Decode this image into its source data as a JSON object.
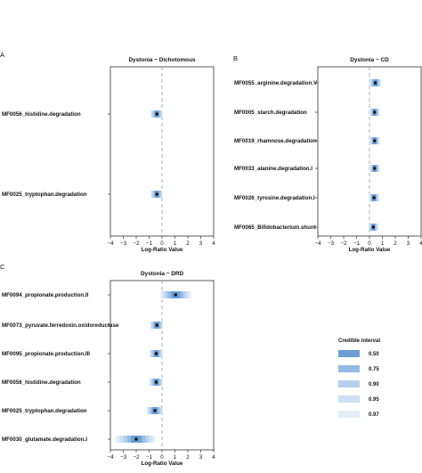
{
  "chart_data": [
    {
      "panel": "A",
      "type": "interval",
      "title": "Dystonia ~ Dichotomous",
      "xlabel": "Log-Ratio Value",
      "xlim": [
        -4,
        4
      ],
      "xticks": [
        "−4",
        "−3",
        "−2",
        "−1",
        "0",
        "1",
        "2",
        "3",
        "4"
      ],
      "reference_line": 0,
      "rows": [
        {
          "label": "MF0056_histidine.degradation",
          "median": -0.4,
          "ci": {
            "0.50": [
              -0.55,
              -0.25
            ],
            "0.75": [
              -0.65,
              -0.15
            ],
            "0.90": [
              -0.75,
              -0.05
            ],
            "0.95": [
              -0.82,
              0.0
            ],
            "0.97": [
              -0.88,
              0.05
            ]
          }
        },
        {
          "label": "MF0025_tryptophan.degradation",
          "median": -0.4,
          "ci": {
            "0.50": [
              -0.55,
              -0.25
            ],
            "0.75": [
              -0.65,
              -0.15
            ],
            "0.90": [
              -0.75,
              -0.05
            ],
            "0.95": [
              -0.82,
              0.0
            ],
            "0.97": [
              -0.88,
              0.05
            ]
          }
        }
      ]
    },
    {
      "panel": "B",
      "type": "interval",
      "title": "Dystonia ~ CD",
      "xlabel": "Log-Ratio Value",
      "xlim": [
        -4,
        4
      ],
      "xticks": [
        "−4",
        "−3",
        "−2",
        "−1",
        "0",
        "1",
        "2",
        "3",
        "4"
      ],
      "reference_line": 0,
      "rows": [
        {
          "label": "MF0055_arginine.degradation.V",
          "median": 0.45,
          "ci": {
            "0.50": [
              0.3,
              0.6
            ],
            "0.75": [
              0.2,
              0.7
            ],
            "0.90": [
              0.12,
              0.78
            ],
            "0.95": [
              0.06,
              0.84
            ],
            "0.97": [
              0.0,
              0.9
            ]
          }
        },
        {
          "label": "MF0005_starch.degradation",
          "median": 0.4,
          "ci": {
            "0.50": [
              0.28,
              0.52
            ],
            "0.75": [
              0.2,
              0.6
            ],
            "0.90": [
              0.12,
              0.68
            ],
            "0.95": [
              0.06,
              0.74
            ],
            "0.97": [
              0.0,
              0.8
            ]
          }
        },
        {
          "label": "MF0019_rhamnose.degradation",
          "median": 0.4,
          "ci": {
            "0.50": [
              0.28,
              0.52
            ],
            "0.75": [
              0.2,
              0.6
            ],
            "0.90": [
              0.12,
              0.68
            ],
            "0.95": [
              0.06,
              0.74
            ],
            "0.97": [
              0.0,
              0.8
            ]
          }
        },
        {
          "label": "MF0033_alanine.degradation.I",
          "median": 0.4,
          "ci": {
            "0.50": [
              0.28,
              0.52
            ],
            "0.75": [
              0.2,
              0.6
            ],
            "0.90": [
              0.12,
              0.68
            ],
            "0.95": [
              0.06,
              0.74
            ],
            "0.97": [
              0.0,
              0.8
            ]
          }
        },
        {
          "label": "MF0026_tyrosine.degradation.I",
          "median": 0.35,
          "ci": {
            "0.50": [
              0.22,
              0.48
            ],
            "0.75": [
              0.14,
              0.56
            ],
            "0.90": [
              0.08,
              0.64
            ],
            "0.95": [
              0.02,
              0.7
            ],
            "0.97": [
              -0.04,
              0.76
            ]
          }
        },
        {
          "label": "MF0065_Bifidobacterium.shunt",
          "median": 0.3,
          "ci": {
            "0.50": [
              0.18,
              0.42
            ],
            "0.75": [
              0.1,
              0.5
            ],
            "0.90": [
              0.04,
              0.58
            ],
            "0.95": [
              -0.02,
              0.64
            ],
            "0.97": [
              -0.08,
              0.7
            ]
          }
        }
      ]
    },
    {
      "panel": "C",
      "type": "interval",
      "title": "Dystonia ~ DRD",
      "xlabel": "Log-Ratio Value",
      "xlim": [
        -4,
        4
      ],
      "xticks": [
        "−4",
        "−3",
        "−2",
        "−1",
        "0",
        "1",
        "2",
        "3",
        "4"
      ],
      "reference_line": 0,
      "rows": [
        {
          "label": "MF0094_propionate.production.II",
          "median": 1.05,
          "ci": {
            "0.50": [
              0.7,
              1.4
            ],
            "0.75": [
              0.45,
              1.65
            ],
            "0.90": [
              0.25,
              1.85
            ],
            "0.95": [
              0.05,
              2.05
            ],
            "0.97": [
              -0.1,
              2.25
            ]
          }
        },
        {
          "label": "MF0073_pyruvate.ferredoxin.oxidoreductase",
          "median": -0.4,
          "ci": {
            "0.50": [
              -0.58,
              -0.22
            ],
            "0.75": [
              -0.68,
              -0.12
            ],
            "0.90": [
              -0.78,
              -0.04
            ],
            "0.95": [
              -0.86,
              0.02
            ],
            "0.97": [
              -0.92,
              0.08
            ]
          }
        },
        {
          "label": "MF0095_propionate.production.III",
          "median": -0.45,
          "ci": {
            "0.50": [
              -0.62,
              -0.28
            ],
            "0.75": [
              -0.72,
              -0.18
            ],
            "0.90": [
              -0.82,
              -0.08
            ],
            "0.95": [
              -0.9,
              0.0
            ],
            "0.97": [
              -0.98,
              0.06
            ]
          }
        },
        {
          "label": "MF0056_histidine.degradation",
          "median": -0.45,
          "ci": {
            "0.50": [
              -0.62,
              -0.28
            ],
            "0.75": [
              -0.72,
              -0.18
            ],
            "0.90": [
              -0.82,
              -0.08
            ],
            "0.95": [
              -0.9,
              0.0
            ],
            "0.97": [
              -0.98,
              0.06
            ]
          }
        },
        {
          "label": "MF0025_tryptophan.degradation",
          "median": -0.55,
          "ci": {
            "0.50": [
              -0.75,
              -0.35
            ],
            "0.75": [
              -0.88,
              -0.22
            ],
            "0.90": [
              -1.0,
              -0.1
            ],
            "0.95": [
              -1.1,
              0.0
            ],
            "0.97": [
              -1.2,
              0.08
            ]
          }
        },
        {
          "label": "MF0030_glutamate.degradation.I",
          "median": -2.0,
          "ci": {
            "0.50": [
              -2.4,
              -1.6
            ],
            "0.75": [
              -2.7,
              -1.3
            ],
            "0.90": [
              -3.0,
              -1.05
            ],
            "0.95": [
              -3.3,
              -0.8
            ],
            "0.97": [
              -3.6,
              -0.55
            ]
          }
        }
      ]
    }
  ],
  "legend": {
    "title": "Credible interval",
    "items": [
      {
        "label": "0.50",
        "color": "#6a9fd6"
      },
      {
        "label": "0.75",
        "color": "#93bbe4"
      },
      {
        "label": "0.90",
        "color": "#b6d1ee"
      },
      {
        "label": "0.95",
        "color": "#cfe0f4"
      },
      {
        "label": "0.97",
        "color": "#e3edf9"
      }
    ]
  }
}
